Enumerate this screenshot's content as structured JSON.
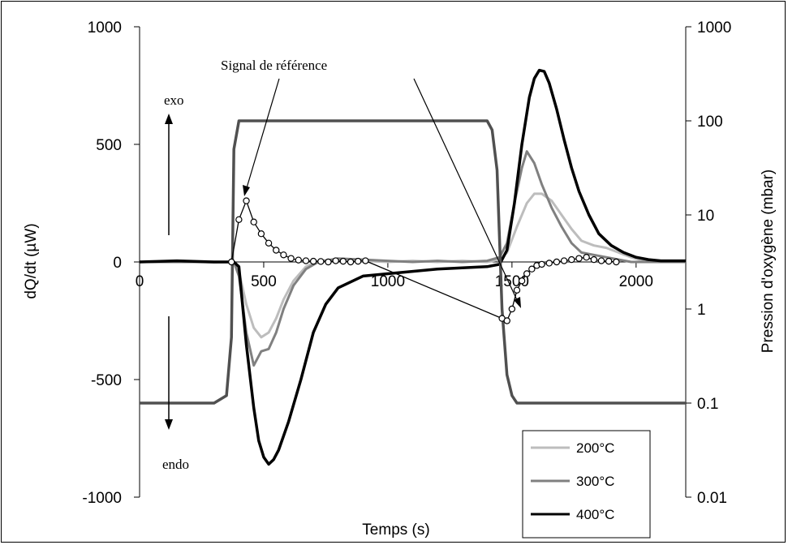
{
  "chart_data": {
    "type": "line",
    "xlabel": "Temps (s)",
    "ylabel": "dQ/dt (µW)",
    "y2label": "Pression d'oxygène (mbar)",
    "xlim": [
      0,
      2200
    ],
    "ylim": [
      -1000,
      1000
    ],
    "y2lim": [
      0.01,
      1000
    ],
    "y2scale": "log",
    "x_ticks": [
      "0",
      "500",
      "1000",
      "1500",
      "2000"
    ],
    "y_ticks": [
      "1000",
      "500",
      "0",
      "-500",
      "-1000"
    ],
    "y2_ticks": [
      "1000",
      "100",
      "10",
      "1",
      "0.1",
      "0.01"
    ],
    "grid": false,
    "legend_position": "bottom-right",
    "annotations": {
      "reference": "Signal de référence",
      "exo": "exo",
      "endo": "endo"
    },
    "series": [
      {
        "name": "200°C",
        "color": "#bdbdbd",
        "points": [
          [
            0,
            0
          ],
          [
            150,
            2
          ],
          [
            300,
            -2
          ],
          [
            380,
            0
          ],
          [
            400,
            -40
          ],
          [
            430,
            -180
          ],
          [
            460,
            -280
          ],
          [
            490,
            -320
          ],
          [
            520,
            -300
          ],
          [
            550,
            -240
          ],
          [
            580,
            -160
          ],
          [
            620,
            -80
          ],
          [
            670,
            -20
          ],
          [
            720,
            5
          ],
          [
            800,
            10
          ],
          [
            900,
            5
          ],
          [
            1000,
            0
          ],
          [
            1100,
            5
          ],
          [
            1200,
            0
          ],
          [
            1300,
            5
          ],
          [
            1400,
            0
          ],
          [
            1450,
            10
          ],
          [
            1480,
            40
          ],
          [
            1520,
            150
          ],
          [
            1560,
            250
          ],
          [
            1590,
            290
          ],
          [
            1620,
            290
          ],
          [
            1660,
            260
          ],
          [
            1700,
            200
          ],
          [
            1740,
            140
          ],
          [
            1780,
            90
          ],
          [
            1830,
            70
          ],
          [
            1880,
            60
          ],
          [
            1930,
            40
          ],
          [
            1980,
            20
          ],
          [
            2030,
            5
          ],
          [
            2080,
            0
          ],
          [
            2130,
            0
          ],
          [
            2200,
            0
          ]
        ]
      },
      {
        "name": "300°C",
        "color": "#808080",
        "points": [
          [
            0,
            0
          ],
          [
            150,
            0
          ],
          [
            300,
            0
          ],
          [
            380,
            0
          ],
          [
            400,
            -60
          ],
          [
            430,
            -300
          ],
          [
            460,
            -440
          ],
          [
            490,
            -380
          ],
          [
            520,
            -370
          ],
          [
            550,
            -300
          ],
          [
            580,
            -200
          ],
          [
            620,
            -100
          ],
          [
            670,
            -30
          ],
          [
            720,
            0
          ],
          [
            800,
            15
          ],
          [
            900,
            10
          ],
          [
            1000,
            5
          ],
          [
            1100,
            0
          ],
          [
            1200,
            5
          ],
          [
            1300,
            0
          ],
          [
            1400,
            5
          ],
          [
            1450,
            20
          ],
          [
            1480,
            80
          ],
          [
            1510,
            250
          ],
          [
            1540,
            400
          ],
          [
            1560,
            470
          ],
          [
            1590,
            420
          ],
          [
            1620,
            330
          ],
          [
            1660,
            230
          ],
          [
            1700,
            150
          ],
          [
            1740,
            80
          ],
          [
            1780,
            40
          ],
          [
            1830,
            30
          ],
          [
            1880,
            20
          ],
          [
            1930,
            10
          ],
          [
            1980,
            0
          ],
          [
            2050,
            0
          ],
          [
            2200,
            0
          ]
        ]
      },
      {
        "name": "400°C",
        "color": "#000000",
        "points": [
          [
            0,
            0
          ],
          [
            150,
            5
          ],
          [
            300,
            0
          ],
          [
            380,
            0
          ],
          [
            400,
            -20
          ],
          [
            430,
            -350
          ],
          [
            460,
            -620
          ],
          [
            480,
            -760
          ],
          [
            500,
            -830
          ],
          [
            520,
            -860
          ],
          [
            540,
            -840
          ],
          [
            560,
            -800
          ],
          [
            600,
            -680
          ],
          [
            650,
            -500
          ],
          [
            700,
            -300
          ],
          [
            750,
            -180
          ],
          [
            800,
            -110
          ],
          [
            900,
            -60
          ],
          [
            1000,
            -50
          ],
          [
            1100,
            -40
          ],
          [
            1200,
            -30
          ],
          [
            1300,
            -25
          ],
          [
            1400,
            -20
          ],
          [
            1450,
            -10
          ],
          [
            1480,
            50
          ],
          [
            1510,
            250
          ],
          [
            1540,
            500
          ],
          [
            1570,
            700
          ],
          [
            1590,
            780
          ],
          [
            1610,
            815
          ],
          [
            1630,
            810
          ],
          [
            1650,
            760
          ],
          [
            1680,
            650
          ],
          [
            1710,
            520
          ],
          [
            1740,
            400
          ],
          [
            1770,
            300
          ],
          [
            1810,
            200
          ],
          [
            1850,
            120
          ],
          [
            1900,
            70
          ],
          [
            1950,
            40
          ],
          [
            2000,
            20
          ],
          [
            2050,
            10
          ],
          [
            2100,
            5
          ],
          [
            2200,
            5
          ]
        ]
      },
      {
        "name": "Pression d'oxygène",
        "axis": "y2",
        "color": "#505050",
        "points": [
          [
            0,
            0.1
          ],
          [
            300,
            0.1
          ],
          [
            350,
            0.12
          ],
          [
            370,
            0.5
          ],
          [
            380,
            50
          ],
          [
            400,
            100
          ],
          [
            500,
            100
          ],
          [
            1000,
            100
          ],
          [
            1400,
            100
          ],
          [
            1420,
            80
          ],
          [
            1440,
            30
          ],
          [
            1460,
            1
          ],
          [
            1480,
            0.2
          ],
          [
            1500,
            0.12
          ],
          [
            1520,
            0.1
          ],
          [
            2200,
            0.1
          ]
        ]
      },
      {
        "name": "Signal de référence",
        "color": "#000000",
        "marker": "circle",
        "points": [
          [
            370,
            0
          ],
          [
            400,
            180
          ],
          [
            430,
            260
          ],
          [
            460,
            170
          ],
          [
            490,
            120
          ],
          [
            520,
            80
          ],
          [
            550,
            50
          ],
          [
            580,
            30
          ],
          [
            610,
            15
          ],
          [
            640,
            8
          ],
          [
            670,
            5
          ],
          [
            700,
            3
          ],
          [
            730,
            2
          ],
          [
            760,
            0
          ],
          [
            790,
            5
          ],
          [
            820,
            3
          ],
          [
            850,
            0
          ],
          [
            880,
            3
          ],
          [
            910,
            5
          ],
          [
            1460,
            -240
          ],
          [
            1480,
            -250
          ],
          [
            1500,
            -200
          ],
          [
            1520,
            -120
          ],
          [
            1540,
            -80
          ],
          [
            1560,
            -50
          ],
          [
            1580,
            -30
          ],
          [
            1600,
            -15
          ],
          [
            1620,
            -10
          ],
          [
            1650,
            -5
          ],
          [
            1680,
            0
          ],
          [
            1710,
            5
          ],
          [
            1740,
            10
          ],
          [
            1770,
            15
          ],
          [
            1800,
            20
          ],
          [
            1830,
            10
          ],
          [
            1860,
            5
          ],
          [
            1890,
            3
          ],
          [
            1920,
            0
          ]
        ]
      }
    ]
  }
}
